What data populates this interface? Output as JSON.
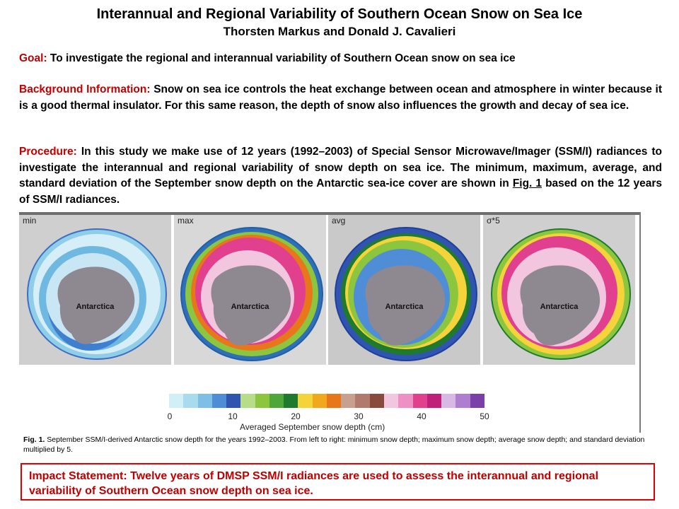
{
  "header": {
    "title": "Interannual and Regional Variability of Southern Ocean Snow on Sea Ice",
    "authors": "Thorsten Markus and Donald J. Cavalieri"
  },
  "goal": {
    "label": "Goal:",
    "text": " To investigate the regional and interannual variability of Southern Ocean snow on sea ice"
  },
  "background": {
    "label": "Background Information:",
    "text": " Snow on sea ice controls the heat exchange between ocean and atmosphere in winter because it is a good thermal insulator. For this same reason, the depth of snow also influences the growth and decay of sea ice."
  },
  "procedure": {
    "label": "Procedure:",
    "text_before": " In this study we make use of 12 years (1992–2003) of Special Sensor Microwave/Imager (SSM/I) radiances to investigate the interannual and regional variability of snow depth on sea ice. The minimum, maximum, average, and standard deviation of the September snow depth on the Antarctic sea-ice cover are shown in ",
    "link": "Fig. 1",
    "text_after": " based on the 12 years of SSM/I radiances."
  },
  "figure": {
    "panels": [
      {
        "label": "min",
        "continent": "Antarctica"
      },
      {
        "label": "max",
        "continent": "Antarctica"
      },
      {
        "label": "avg",
        "continent": "Antarctica"
      },
      {
        "label": "σ*5",
        "continent": "Antarctica"
      }
    ],
    "colorbar": {
      "ticks": [
        "0",
        "10",
        "20",
        "30",
        "40",
        "50"
      ],
      "label": "Averaged September snow depth (cm)",
      "colors": [
        "#d2eef6",
        "#a8dbee",
        "#7dbfe6",
        "#4f8ed6",
        "#2f55b0",
        "#b8dc8a",
        "#8cc63f",
        "#4fa63a",
        "#1f7a2e",
        "#f5d33b",
        "#f0a81c",
        "#e8761a",
        "#c8a090",
        "#b27a6e",
        "#8a4a3e",
        "#f3c6e0",
        "#ee8fc6",
        "#e0408e",
        "#c0207a",
        "#d8b8e4",
        "#b07ed0",
        "#7a3fa8"
      ]
    },
    "caption_label": "Fig. 1.",
    "caption_text": " September SSM/I-derived Antarctic snow depth for the years 1992–2003.  From left to right: minimum snow depth; maximum snow depth; average snow depth; and standard deviation multiplied by 5."
  },
  "impact": {
    "text": "Impact Statement: Twelve years of DMSP SSM/I radiances are used to assess the interannual and regional variability of Southern Ocean snow depth on sea ice."
  }
}
